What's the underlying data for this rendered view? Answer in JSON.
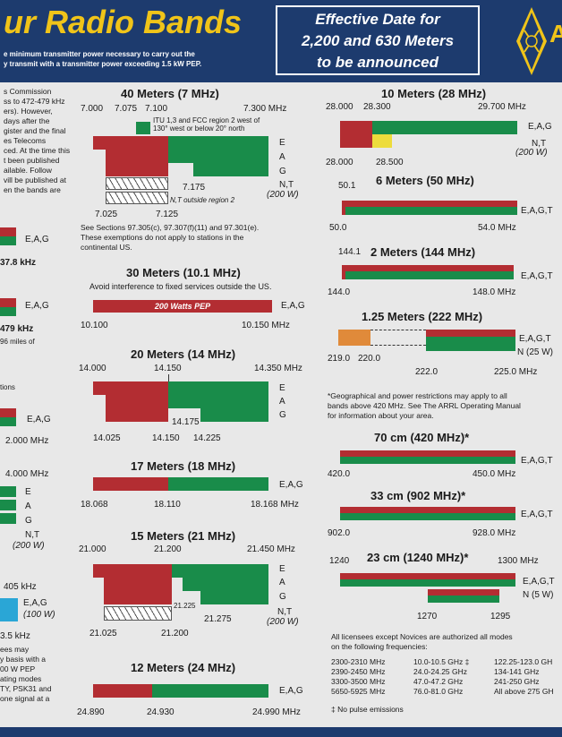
{
  "header": {
    "title": "ur Radio Bands",
    "sub1": "e minimum transmitter power necessary to carry out the",
    "sub2": "y transmit with a transmitter power exceeding 1.5 kW PEP.",
    "eff1": "Effective Date for",
    "eff2": "2,200 and 630 Meters",
    "eff3": "to be announced",
    "logo_letter": "A"
  },
  "left": {
    "note1": [
      "s Commission",
      "ss to 472-479 kHz",
      "ers). However,",
      "days after the",
      "gister and the final",
      "es Telecoms",
      "ced. At the time this",
      "t been published",
      "ailable. Follow",
      "vill be published at",
      "en the bands are"
    ],
    "eag1": "E,A,G",
    "k1": "37.8 kHz",
    "eag2": "E,A,G",
    "k2": "479 kHz",
    "n2": "96 miles of",
    "n3": "tions",
    "eag3": "E,A,G",
    "m3": "2.000  MHz",
    "m4": "4.000  MHz",
    "e4": "E",
    "a4": "A",
    "g4": "G",
    "nt4": "N,T",
    "w4": "(200 W)",
    "k5": "405 kHz",
    "eag5": "E,A,G",
    "w5": "(100 W)",
    "k5b": "3.5  kHz",
    "note6": [
      "ees may",
      "y basis with a",
      "00 W PEP",
      "ating modes",
      "TY, PSK31 and",
      "one signal at a"
    ]
  },
  "m40": {
    "title": "40 Meters (7 MHz)",
    "f1": "7.000",
    "f2": "7.075",
    "f3": "7.100",
    "f4": "7.300  MHz",
    "itu1": "ITU 1,3 and FCC region 2 west of",
    "itu2": "130° west or below 20° north",
    "e": "E",
    "a": "A",
    "g": "G",
    "nt": "N,T",
    "w": "(200 W)",
    "f5": "7.175",
    "outside": "N,T outside region 2",
    "f6": "7.025",
    "f7": "7.125",
    "note1": "See Sections 97.305(c), 97.307(f)(11) and 97.301(e).",
    "note2": "These exemptions do not apply to stations in the",
    "note3": "continental US."
  },
  "m30": {
    "title": "30 Meters (10.1 MHz)",
    "sub": "Avoid interference to fixed services outside the US.",
    "bar": "200 Watts PEP",
    "eag": "E,A,G",
    "f1": "10.100",
    "f2": "10.150  MHz"
  },
  "m20": {
    "title": "20 Meters (14 MHz)",
    "f1": "14.000",
    "f2": "14.150",
    "f3": "14.350  MHz",
    "e": "E",
    "a": "A",
    "g": "G",
    "f4": "14.175",
    "f5": "14.025",
    "f6": "14.150",
    "f7": "14.225"
  },
  "m17": {
    "title": "17 Meters (18 MHz)",
    "eag": "E,A,G",
    "f1": "18.068",
    "f2": "18.110",
    "f3": "18.168  MHz"
  },
  "m15": {
    "title": "15 Meters (21 MHz)",
    "f1": "21.000",
    "f2": "21.200",
    "f3": "21.450  MHz",
    "e": "E",
    "a": "A",
    "g": "G",
    "nt": "N,T",
    "w": "(200 W)",
    "f4": "21.225",
    "f5": "21.275",
    "f6": "21.025",
    "f7": "21.200"
  },
  "m12": {
    "title": "12 Meters (24 MHz)",
    "eag": "E,A,G",
    "f1": "24.890",
    "f2": "24.930",
    "f3": "24.990  MHz"
  },
  "m10": {
    "title": "10 Meters (28 MHz)",
    "f1": "28.000",
    "f2": "28.300",
    "f3": "29.700  MHz",
    "eag": "E,A,G",
    "nt": "N,T",
    "w": "(200 W)",
    "f4": "28.000",
    "f5": "28.500"
  },
  "m6": {
    "title": "6 Meters (50 MHz)",
    "f1": "50.1",
    "eagt": "E,A,G,T",
    "f2": "50.0",
    "f3": "54.0  MHz"
  },
  "m2": {
    "f1": "144.1",
    "title": "2 Meters (144 MHz)",
    "eagt": "E,A,G,T",
    "f2": "144.0",
    "f3": "148.0  MHz"
  },
  "m125": {
    "title": "1.25 Meters (222 MHz)",
    "eagt": "E,A,G,T",
    "n": "N (25 W)",
    "f1": "219.0",
    "f2": "220.0",
    "f3": "222.0",
    "f4": "225.0  MHz"
  },
  "geo": {
    "l1": "*Geographical and power restrictions may apply to all",
    "l2": "bands above 420 MHz. See The ARRL Operating Manual",
    "l3": "for information about your area."
  },
  "m70": {
    "title": "70 cm (420 MHz)*",
    "eagt": "E,A,G,T",
    "f1": "420.0",
    "f2": "450.0  MHz"
  },
  "m33": {
    "title": "33 cm (902 MHz)*",
    "eagt": "E,A,G,T",
    "f1": "902.0",
    "f2": "928.0  MHz"
  },
  "m23": {
    "f1": "1240",
    "title": "23 cm (1240 MHz)*",
    "f2": "1300  MHz",
    "eagt": "E,A,G,T",
    "n": "N (5 W)",
    "f3": "1270",
    "f4": "1295"
  },
  "ghz": {
    "intro1": "All licensees except Novices are authorized all modes",
    "intro2": "on the following frequencies:",
    "col1": [
      "2300-2310 MHz",
      "2390-2450 MHz",
      "3300-3500 MHz",
      "5650-5925 MHz"
    ],
    "col2": [
      "10.0-10.5 GHz ‡",
      "24.0-24.25 GHz",
      "47.0-47.2 GHz",
      "76.0-81.0 GHz"
    ],
    "col3": [
      "122.25-123.0 GH",
      "134-141 GHz",
      "241-250 GHz",
      "All above 275 GH"
    ],
    "foot": "‡ No pulse emissions"
  },
  "colors": {
    "red": "#b32d32",
    "green": "#198c4a",
    "navy": "#1d3b6e",
    "gold": "#f0c419"
  }
}
